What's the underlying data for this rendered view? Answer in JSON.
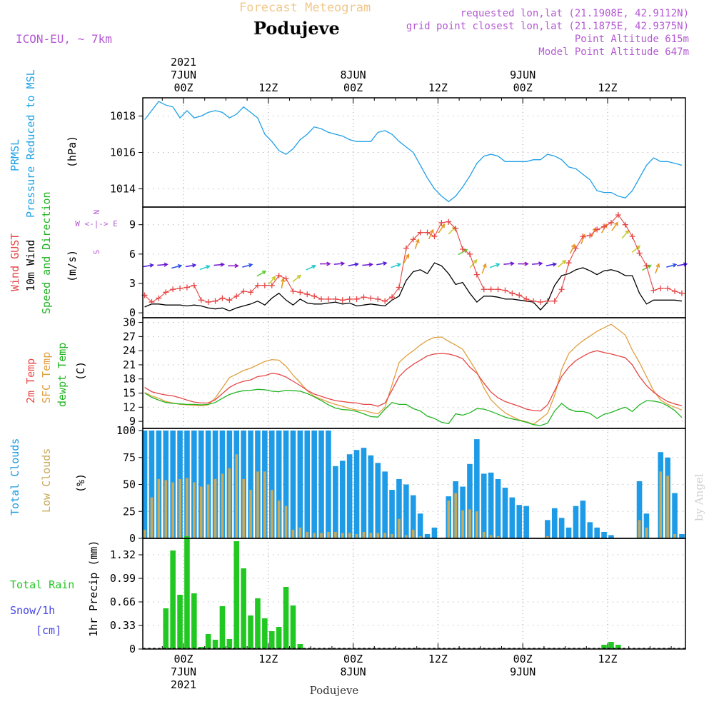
{
  "header": {
    "subtitle": "Forecast Meteogram",
    "location": "Podujeve",
    "model": "ICON-EU, ~ 7km",
    "requested": "requested lon,lat (21.1908E, 42.9112N)",
    "closest": "grid point closest lon,lat (21.1875E, 42.9375N)",
    "point_alt": "Point Altitude 615m",
    "model_alt": "Model Point Altitude 647m",
    "watermark": "by Angel",
    "footer": "Podujeve"
  },
  "colors": {
    "pressure": "#1ea0e6",
    "gust": "#e64646",
    "wind": "#000000",
    "temp2m": "#e64646",
    "sfc": "#e0a040",
    "dewpt": "#22b422",
    "total_clouds": "#1e9be6",
    "low_clouds": "#c8aa5a",
    "rain": "#22c822",
    "snow": "#4646e6",
    "purple": "#b45ad2",
    "subtitle": "#f0c88c"
  },
  "time_axis": {
    "top_labels": [
      {
        "hour": 0,
        "lines": [
          "2021",
          "7JUN",
          "00Z"
        ]
      },
      {
        "hour": 12,
        "lines": [
          "12Z"
        ]
      },
      {
        "hour": 24,
        "lines": [
          "8JUN",
          "00Z"
        ]
      },
      {
        "hour": 36,
        "lines": [
          "12Z"
        ]
      },
      {
        "hour": 48,
        "lines": [
          "9JUN",
          "00Z"
        ]
      },
      {
        "hour": 60,
        "lines": [
          "12Z"
        ]
      }
    ],
    "bottom_labels": [
      {
        "hour": 0,
        "lines": [
          "00Z",
          "7JUN",
          "2021"
        ]
      },
      {
        "hour": 12,
        "lines": [
          "12Z"
        ]
      },
      {
        "hour": 24,
        "lines": [
          "00Z",
          "8JUN"
        ]
      },
      {
        "hour": 36,
        "lines": [
          "12Z"
        ]
      },
      {
        "hour": 48,
        "lines": [
          "00Z",
          "9JUN"
        ]
      },
      {
        "hour": 60,
        "lines": [
          "12Z"
        ]
      }
    ]
  },
  "chart_data": [
    {
      "id": "pressure",
      "type": "line",
      "label_lines": [
        "PRMSL",
        "Pressure Reduced to MSL"
      ],
      "ylabel": "(hPa)",
      "ylim": [
        1013,
        1019
      ],
      "yticks": [
        1014,
        1016,
        1018
      ],
      "x": [
        -5.5,
        -4.5,
        -3.5,
        -2.5,
        -1.5,
        -0.5,
        0.5,
        1.5,
        2.5,
        3.5,
        4.5,
        5.5,
        6.5,
        7.5,
        8.5,
        9.5,
        10.5,
        11.5,
        12.5,
        13.5,
        14.5,
        15.5,
        16.5,
        17.5,
        18.5,
        19.5,
        20.5,
        21.5,
        22.5,
        23.5,
        24.5,
        25.5,
        26.5,
        27.5,
        28.5,
        29.5,
        30.5,
        31.5,
        32.5,
        33.5,
        34.5,
        35.5,
        36.5,
        37.5,
        38.5,
        39.5,
        40.5,
        41.5,
        42.5,
        43.5,
        44.5,
        45.5,
        46.5,
        47.5,
        48.5,
        49.5,
        50.5,
        51.5,
        52.5,
        53.5,
        54.5,
        55.5,
        56.5,
        57.5,
        58.5,
        59.5,
        60.5,
        61.5,
        62.5,
        63.5,
        64.5,
        65.5,
        66.5,
        67.5,
        68.5,
        69.5,
        70.5
      ],
      "values": [
        1017.8,
        1018.3,
        1018.8,
        1018.6,
        1018.5,
        1017.9,
        1018.3,
        1017.9,
        1018.0,
        1018.2,
        1018.3,
        1018.2,
        1017.9,
        1018.1,
        1018.5,
        1018.2,
        1017.9,
        1017.0,
        1016.6,
        1016.1,
        1015.9,
        1016.2,
        1016.7,
        1017.0,
        1017.4,
        1017.3,
        1017.1,
        1017.0,
        1016.9,
        1016.7,
        1016.6,
        1016.6,
        1016.6,
        1017.1,
        1017.2,
        1017.0,
        1016.6,
        1016.3,
        1016.0,
        1015.3,
        1014.6,
        1014.0,
        1013.6,
        1013.3,
        1013.6,
        1014.1,
        1014.7,
        1015.4,
        1015.8,
        1015.9,
        1015.8,
        1015.5,
        1015.5,
        1015.5,
        1015.5,
        1015.6,
        1015.6,
        1015.9,
        1015.8,
        1015.6,
        1015.2,
        1015.1,
        1014.8,
        1014.5,
        1013.9,
        1013.8,
        1013.8,
        1013.6,
        1013.5,
        1013.9,
        1014.6,
        1015.3,
        1015.7,
        1015.5,
        1015.5,
        1015.4,
        1015.3
      ]
    },
    {
      "id": "wind",
      "type": "line",
      "label_lines": [
        "Wind GUST",
        "10m Wind",
        "Speed and Direction"
      ],
      "ylabel": "(m/s)",
      "compass": [
        "N",
        "W <-|-> E",
        "S"
      ],
      "ylim": [
        -0.5,
        10.8
      ],
      "yticks": [
        0,
        3,
        6,
        9
      ],
      "x": [
        -5.5,
        -4.5,
        -3.5,
        -2.5,
        -1.5,
        -0.5,
        0.5,
        1.5,
        2.5,
        3.5,
        4.5,
        5.5,
        6.5,
        7.5,
        8.5,
        9.5,
        10.5,
        11.5,
        12.5,
        13.5,
        14.5,
        15.5,
        16.5,
        17.5,
        18.5,
        19.5,
        20.5,
        21.5,
        22.5,
        23.5,
        24.5,
        25.5,
        26.5,
        27.5,
        28.5,
        29.5,
        30.5,
        31.5,
        32.5,
        33.5,
        34.5,
        35.5,
        36.5,
        37.5,
        38.5,
        39.5,
        40.5,
        41.5,
        42.5,
        43.5,
        44.5,
        45.5,
        46.5,
        47.5,
        48.5,
        49.5,
        50.5,
        51.5,
        52.5,
        53.5,
        54.5,
        55.5,
        56.5,
        57.5,
        58.5,
        59.5,
        60.5,
        61.5,
        62.5,
        63.5,
        64.5,
        65.5,
        66.5,
        67.5,
        68.5,
        69.5,
        70.5
      ],
      "gust": [
        1.8,
        1.1,
        1.5,
        2.1,
        2.4,
        2.5,
        2.6,
        2.8,
        1.3,
        1.1,
        1.2,
        1.5,
        1.3,
        1.7,
        2.2,
        2.1,
        2.8,
        2.8,
        2.8,
        3.8,
        3.5,
        2.2,
        2.1,
        1.9,
        1.7,
        1.4,
        1.4,
        1.4,
        1.3,
        1.4,
        1.4,
        1.6,
        1.5,
        1.4,
        1.2,
        1.6,
        2.6,
        6.6,
        7.5,
        8.2,
        8.2,
        7.8,
        9.2,
        9.3,
        8.6,
        6.5,
        6.0,
        3.9,
        2.4,
        2.4,
        2.4,
        2.3,
        2.0,
        1.8,
        1.4,
        1.2,
        1.1,
        1.2,
        1.2,
        2.4,
        5.1,
        6.6,
        7.8,
        7.9,
        8.5,
        8.8,
        9.2,
        10.0,
        9.0,
        7.8,
        6.1,
        4.8,
        2.3,
        2.5,
        2.5,
        2.2,
        2.0
      ],
      "speed": [
        0.6,
        0.9,
        0.9,
        0.8,
        0.8,
        0.8,
        0.7,
        0.8,
        0.7,
        0.5,
        0.4,
        0.5,
        0.2,
        0.5,
        0.7,
        0.9,
        1.2,
        0.8,
        1.5,
        2.0,
        1.3,
        0.8,
        1.4,
        1.0,
        0.9,
        0.9,
        1.0,
        1.1,
        0.9,
        1.0,
        0.7,
        0.8,
        0.9,
        0.8,
        0.7,
        1.3,
        1.7,
        3.3,
        4.2,
        4.4,
        4.0,
        5.1,
        4.8,
        4.0,
        2.9,
        3.1,
        2.0,
        1.1,
        1.7,
        1.7,
        1.6,
        1.4,
        1.4,
        1.3,
        1.2,
        1.1,
        0.3,
        1.1,
        2.8,
        3.8,
        4.0,
        4.4,
        4.6,
        4.3,
        3.9,
        4.3,
        4.4,
        4.2,
        3.8,
        3.8,
        2.0,
        0.9,
        1.3,
        1.3,
        1.3,
        1.3,
        1.2
      ],
      "arrow_colors": [
        "#8c14c8",
        "#6e14d2",
        "#501edc",
        "#2850e6",
        "#1e96e6",
        "#1ec8c8",
        "#5acd32",
        "#c8c828",
        "#e6961e"
      ],
      "arrows": [
        {
          "h": -5,
          "dir": 260,
          "spd": 4.8
        },
        {
          "h": -3,
          "dir": 265,
          "spd": 4.9
        },
        {
          "h": -1,
          "dir": 255,
          "spd": 4.7
        },
        {
          "h": 1,
          "dir": 260,
          "spd": 4.8
        },
        {
          "h": 3,
          "dir": 250,
          "spd": 4.6
        },
        {
          "h": 5,
          "dir": 265,
          "spd": 4.9
        },
        {
          "h": 7,
          "dir": 270,
          "spd": 4.8
        },
        {
          "h": 9,
          "dir": 255,
          "spd": 4.8
        },
        {
          "h": 11,
          "dir": 240,
          "spd": 4.0
        },
        {
          "h": 12.5,
          "dir": 220,
          "spd": 3.3
        },
        {
          "h": 14,
          "dir": 190,
          "spd": 3.0
        },
        {
          "h": 16,
          "dir": 230,
          "spd": 3.5
        },
        {
          "h": 18,
          "dir": 245,
          "spd": 4.6
        },
        {
          "h": 20,
          "dir": 270,
          "spd": 5.0
        },
        {
          "h": 22,
          "dir": 265,
          "spd": 5.0
        },
        {
          "h": 24,
          "dir": 260,
          "spd": 4.9
        },
        {
          "h": 26,
          "dir": 265,
          "spd": 4.9
        },
        {
          "h": 28,
          "dir": 260,
          "spd": 5.0
        },
        {
          "h": 30,
          "dir": 250,
          "spd": 4.8
        },
        {
          "h": 31.5,
          "dir": 210,
          "spd": 5.5
        },
        {
          "h": 33,
          "dir": 200,
          "spd": 7.0
        },
        {
          "h": 35,
          "dir": 205,
          "spd": 8.0
        },
        {
          "h": 36.5,
          "dir": 215,
          "spd": 8.6
        },
        {
          "h": 38,
          "dir": 225,
          "spd": 8.4
        },
        {
          "h": 39.5,
          "dir": 240,
          "spd": 6.2
        },
        {
          "h": 41,
          "dir": 220,
          "spd": 5.0
        },
        {
          "h": 42.5,
          "dir": 200,
          "spd": 4.5
        },
        {
          "h": 44,
          "dir": 250,
          "spd": 4.8
        },
        {
          "h": 46,
          "dir": 265,
          "spd": 5.0
        },
        {
          "h": 48,
          "dir": 270,
          "spd": 5.0
        },
        {
          "h": 50,
          "dir": 265,
          "spd": 5.0
        },
        {
          "h": 52,
          "dir": 260,
          "spd": 4.9
        },
        {
          "h": 53.5,
          "dir": 230,
          "spd": 5.0
        },
        {
          "h": 55,
          "dir": 205,
          "spd": 6.5
        },
        {
          "h": 56.5,
          "dir": 200,
          "spd": 7.5
        },
        {
          "h": 58,
          "dir": 205,
          "spd": 8.2
        },
        {
          "h": 59.5,
          "dir": 210,
          "spd": 8.6
        },
        {
          "h": 61,
          "dir": 215,
          "spd": 8.8
        },
        {
          "h": 62.5,
          "dir": 220,
          "spd": 8.0
        },
        {
          "h": 64,
          "dir": 230,
          "spd": 6.5
        },
        {
          "h": 65.5,
          "dir": 240,
          "spd": 4.6
        },
        {
          "h": 67,
          "dir": 200,
          "spd": 4.5
        },
        {
          "h": 69,
          "dir": 255,
          "spd": 4.8
        },
        {
          "h": 70.5,
          "dir": 260,
          "spd": 4.9
        }
      ]
    },
    {
      "id": "temperature",
      "type": "line",
      "label_lines": [
        "2m Temp",
        "SFC Temp",
        "dewpt Temp"
      ],
      "ylabel": "(C)",
      "ylim": [
        7.5,
        31
      ],
      "yticks": [
        9,
        12,
        15,
        18,
        21,
        24,
        27,
        30
      ],
      "x": [
        -5.5,
        -4.5,
        -3.5,
        -2.5,
        -1.5,
        -0.5,
        0.5,
        1.5,
        2.5,
        3.5,
        4.5,
        5.5,
        6.5,
        7.5,
        8.5,
        9.5,
        10.5,
        11.5,
        12.5,
        13.5,
        14.5,
        15.5,
        16.5,
        17.5,
        18.5,
        19.5,
        20.5,
        21.5,
        22.5,
        23.5,
        24.5,
        25.5,
        26.5,
        27.5,
        28.5,
        29.5,
        30.5,
        31.5,
        32.5,
        33.5,
        34.5,
        35.5,
        36.5,
        37.5,
        38.5,
        39.5,
        40.5,
        41.5,
        42.5,
        43.5,
        44.5,
        45.5,
        46.5,
        47.5,
        48.5,
        49.5,
        50.5,
        51.5,
        52.5,
        53.5,
        54.5,
        55.5,
        56.5,
        57.5,
        58.5,
        59.5,
        60.5,
        61.5,
        62.5,
        63.5,
        64.5,
        65.5,
        66.5,
        67.5,
        68.5,
        69.5,
        70.5
      ],
      "temp2m": [
        16.2,
        15.3,
        14.9,
        14.6,
        14.4,
        14.0,
        13.5,
        13.1,
        12.9,
        12.9,
        13.6,
        14.9,
        16.2,
        17.0,
        17.5,
        17.8,
        18.5,
        18.7,
        19.2,
        19.0,
        18.4,
        17.5,
        16.6,
        15.6,
        14.8,
        14.3,
        13.8,
        13.4,
        13.2,
        13.0,
        12.9,
        12.6,
        12.6,
        12.2,
        12.9,
        15.6,
        18.5,
        20.0,
        21.1,
        22.0,
        22.9,
        23.3,
        23.4,
        23.3,
        22.9,
        22.3,
        20.5,
        19.2,
        17.1,
        15.2,
        14.0,
        13.2,
        12.7,
        12.2,
        11.6,
        11.3,
        11.2,
        12.5,
        15.5,
        18.5,
        20.5,
        21.9,
        22.8,
        23.6,
        24.0,
        23.6,
        23.3,
        22.9,
        22.5,
        21.0,
        18.5,
        16.6,
        15.2,
        14.1,
        13.2,
        12.7,
        12.3
      ],
      "sfc": [
        15.1,
        14.4,
        13.9,
        13.2,
        12.9,
        12.6,
        12.5,
        12.4,
        12.3,
        12.5,
        14.0,
        16.1,
        18.3,
        19.0,
        19.8,
        20.3,
        21.0,
        21.7,
        22.1,
        22.0,
        20.7,
        18.8,
        17.2,
        15.5,
        14.3,
        13.7,
        13.1,
        12.6,
        12.2,
        11.7,
        11.4,
        11.3,
        10.9,
        10.6,
        12.0,
        16.7,
        21.5,
        22.9,
        24.0,
        25.2,
        26.2,
        26.8,
        26.9,
        26.0,
        25.2,
        24.3,
        21.9,
        19.5,
        16.1,
        13.6,
        12.1,
        10.8,
        10.0,
        9.3,
        8.9,
        8.4,
        9.5,
        10.7,
        14.5,
        20.0,
        23.4,
        24.9,
        26.1,
        27.1,
        28.1,
        28.9,
        29.6,
        28.5,
        27.3,
        24.1,
        21.5,
        18.5,
        15.5,
        13.5,
        12.6,
        12.0,
        11.4
      ],
      "dewpt": [
        15.0,
        14.1,
        13.5,
        13.0,
        12.8,
        12.7,
        12.6,
        12.6,
        12.5,
        12.6,
        13.0,
        13.9,
        14.7,
        15.2,
        15.5,
        15.6,
        15.8,
        15.7,
        15.4,
        15.3,
        15.6,
        15.5,
        15.4,
        14.9,
        14.2,
        13.4,
        12.5,
        11.8,
        11.5,
        11.4,
        11.1,
        10.6,
        10.0,
        9.9,
        11.6,
        13.0,
        12.6,
        12.6,
        11.7,
        11.2,
        10.1,
        9.6,
        8.8,
        8.5,
        10.6,
        10.3,
        10.8,
        11.7,
        11.6,
        11.1,
        10.5,
        9.9,
        9.5,
        9.2,
        8.8,
        8.3,
        8.1,
        8.6,
        11.2,
        12.8,
        11.6,
        11.1,
        11.1,
        10.7,
        9.6,
        10.5,
        10.9,
        11.5,
        12.0,
        11.1,
        12.5,
        13.4,
        13.3,
        13.0,
        12.3,
        11.3,
        9.8
      ]
    },
    {
      "id": "clouds",
      "type": "bar",
      "label_lines": [
        "Total Clouds",
        "Low Clouds"
      ],
      "ylabel": "(%)",
      "ylim": [
        0,
        102
      ],
      "yticks": [
        0,
        25,
        50,
        75,
        100
      ],
      "x": [
        -5.5,
        -4.5,
        -3.5,
        -2.5,
        -1.5,
        -0.5,
        0.5,
        1.5,
        2.5,
        3.5,
        4.5,
        5.5,
        6.5,
        7.5,
        8.5,
        9.5,
        10.5,
        11.5,
        12.5,
        13.5,
        14.5,
        15.5,
        16.5,
        17.5,
        18.5,
        19.5,
        20.5,
        21.5,
        22.5,
        23.5,
        24.5,
        25.5,
        26.5,
        27.5,
        28.5,
        29.5,
        30.5,
        31.5,
        32.5,
        33.5,
        34.5,
        35.5,
        36.5,
        37.5,
        38.5,
        39.5,
        40.5,
        41.5,
        42.5,
        43.5,
        44.5,
        45.5,
        46.5,
        47.5,
        48.5,
        49.5,
        50.5,
        51.5,
        52.5,
        53.5,
        54.5,
        55.5,
        56.5,
        57.5,
        58.5,
        59.5,
        60.5,
        61.5,
        62.5,
        63.5,
        64.5,
        65.5,
        66.5,
        67.5,
        68.5,
        69.5,
        70.5
      ],
      "total": [
        100,
        100,
        100,
        100,
        100,
        100,
        100,
        100,
        100,
        100,
        100,
        100,
        100,
        100,
        100,
        100,
        100,
        100,
        100,
        100,
        100,
        100,
        100,
        100,
        100,
        100,
        100,
        67,
        72,
        78,
        82,
        84,
        77,
        70,
        62,
        45,
        55,
        50,
        40,
        23,
        4,
        10,
        0,
        39,
        53,
        48,
        69,
        92,
        60,
        61,
        55,
        47,
        38,
        31,
        30,
        0,
        0,
        17,
        28,
        19,
        10,
        30,
        35,
        15,
        10,
        6,
        3,
        0,
        0,
        0,
        53,
        23,
        0,
        80,
        75,
        42,
        4
      ]
    }
  ]
}
